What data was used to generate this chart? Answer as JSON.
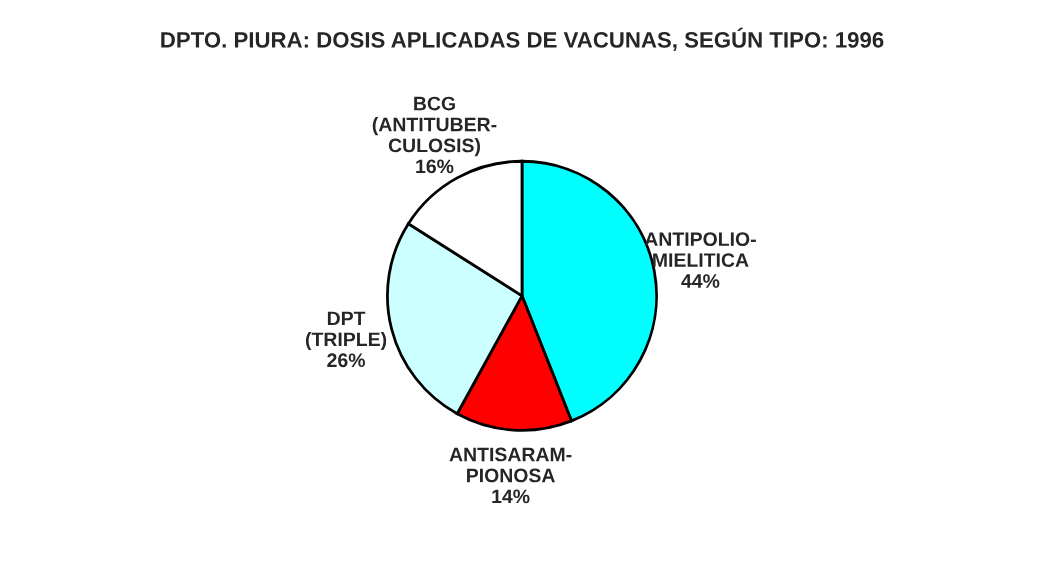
{
  "chart_data": {
    "type": "pie",
    "title": "DPTO. PIURA: DOSIS APLICADAS DE VACUNAS, SEGÚN TIPO: 1996",
    "categories": [
      "ANTIPOLIO-\nMIELITICA",
      "ANTISARAM-\nPIONOSA",
      "DPT\n(TRIPLE)",
      "BCG\n(ANTITUBER-\nCULOSIS)"
    ],
    "values": [
      44,
      14,
      26,
      16
    ],
    "value_labels": [
      "44%",
      "14%",
      "26%",
      "16%"
    ],
    "colors": [
      "#00ffff",
      "#ff0000",
      "#ccffff",
      "#ffffff"
    ]
  }
}
